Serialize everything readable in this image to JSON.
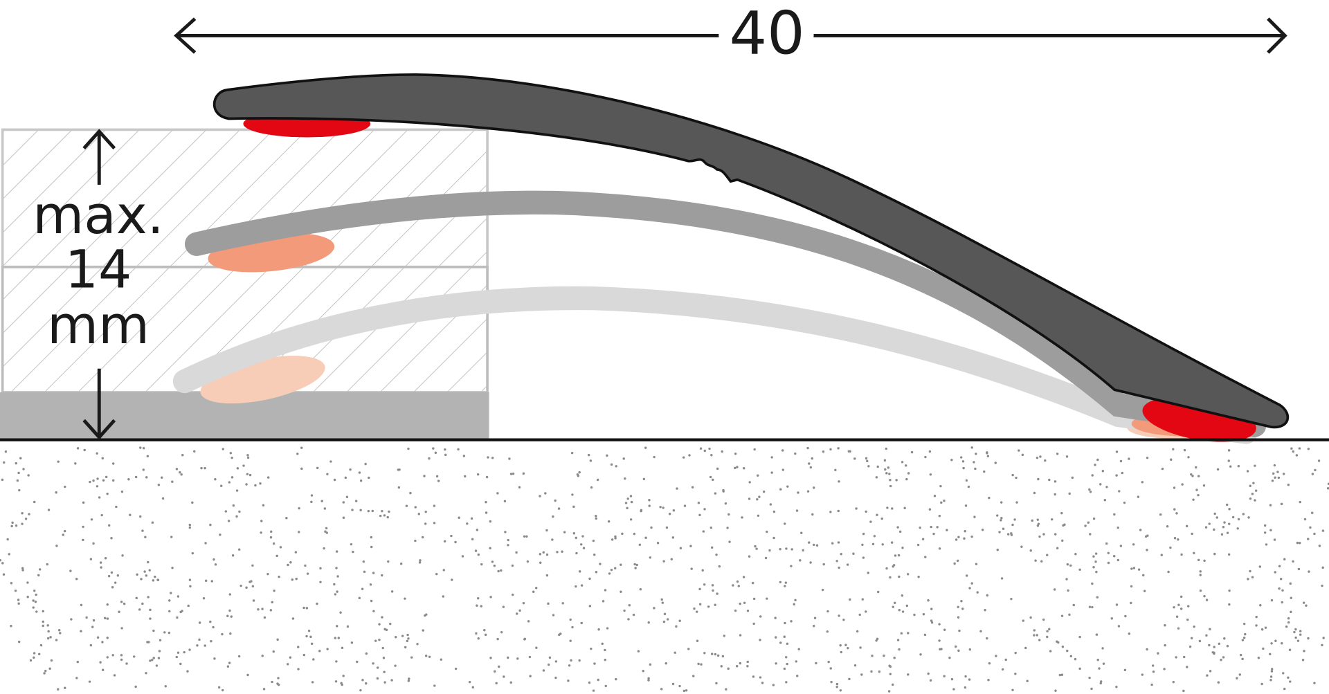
{
  "dimensions": {
    "width_label": "40",
    "height_label": [
      "max.",
      "14",
      "mm"
    ]
  }
}
